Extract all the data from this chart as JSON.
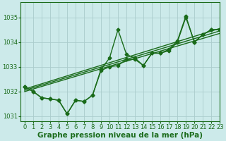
{
  "title": "Graphe pression niveau de la mer (hPa)",
  "bg_color": "#cceaea",
  "grid_color": "#aacccc",
  "line_color": "#1a6b1a",
  "xlim": [
    -0.5,
    23
  ],
  "ylim": [
    1030.8,
    1035.6
  ],
  "xticks": [
    0,
    1,
    2,
    3,
    4,
    5,
    6,
    7,
    8,
    9,
    10,
    11,
    12,
    13,
    14,
    15,
    16,
    17,
    18,
    19,
    20,
    21,
    22,
    23
  ],
  "yticks": [
    1031,
    1032,
    1033,
    1034,
    1035
  ],
  "series": [
    {
      "x": [
        0,
        1,
        2,
        3,
        4,
        5,
        6,
        7,
        8,
        9,
        10,
        11,
        12,
        13,
        14,
        15,
        16,
        17,
        18,
        19,
        20,
        21,
        22,
        23
      ],
      "y": [
        1032.2,
        1032.0,
        1031.75,
        1031.7,
        1031.65,
        1031.1,
        1031.65,
        1031.6,
        1031.85,
        1032.9,
        1033.35,
        1034.5,
        1033.5,
        1033.35,
        1033.05,
        1033.55,
        1033.55,
        1033.7,
        1034.05,
        1035.05,
        1034.0,
        1034.3,
        1034.5,
        1034.5
      ],
      "marker": "D",
      "markersize": 2.5,
      "linewidth": 1.0
    },
    {
      "x": [
        0,
        1,
        2,
        3,
        4,
        5,
        6,
        7,
        8,
        9,
        10,
        11,
        12,
        13,
        14,
        15,
        16,
        17,
        18,
        19,
        20,
        21,
        22,
        23
      ],
      "y": [
        1032.2,
        1032.0,
        1031.75,
        1031.7,
        1031.65,
        1031.1,
        1031.65,
        1031.6,
        1031.85,
        1032.85,
        1033.0,
        1033.05,
        1033.3,
        1033.3,
        1033.05,
        1033.55,
        1033.55,
        1033.65,
        1034.0,
        1035.0,
        1034.0,
        1034.3,
        1034.5,
        1034.5
      ],
      "marker": "D",
      "markersize": 2.5,
      "linewidth": 1.0
    },
    {
      "x": [
        0,
        23
      ],
      "y": [
        1032.1,
        1034.55
      ],
      "marker": null,
      "markersize": 0,
      "linewidth": 1.0
    },
    {
      "x": [
        0,
        23
      ],
      "y": [
        1032.05,
        1034.45
      ],
      "marker": null,
      "markersize": 0,
      "linewidth": 1.0
    },
    {
      "x": [
        0,
        23
      ],
      "y": [
        1032.0,
        1034.35
      ],
      "marker": null,
      "markersize": 0,
      "linewidth": 1.0
    }
  ],
  "ylabel_fontsize": 6.5,
  "xlabel_fontsize": 7.5,
  "tick_fontsize": 6.0
}
